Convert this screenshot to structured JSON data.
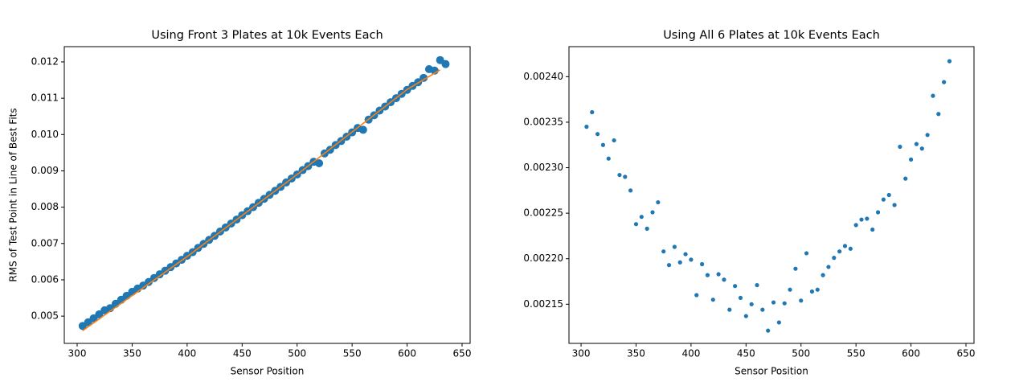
{
  "chart_data": [
    {
      "type": "scatter",
      "title": "Using Front 3 Plates at 10k Events Each",
      "xlabel": "Sensor Position",
      "ylabel": "RMS of Test Point in Line of Best Fits",
      "x": [
        305,
        310,
        315,
        320,
        325,
        330,
        335,
        340,
        345,
        350,
        355,
        360,
        365,
        370,
        375,
        380,
        385,
        390,
        395,
        400,
        405,
        410,
        415,
        420,
        425,
        430,
        435,
        440,
        445,
        450,
        455,
        460,
        465,
        470,
        475,
        480,
        485,
        490,
        495,
        500,
        505,
        510,
        515,
        520,
        525,
        530,
        535,
        540,
        545,
        550,
        555,
        560,
        565,
        570,
        575,
        580,
        585,
        590,
        595,
        600,
        605,
        610,
        615,
        620,
        625,
        630,
        635
      ],
      "series": [
        {
          "color": "#1f77b4",
          "values": [
            0.00473,
            0.00483,
            0.00494,
            0.00505,
            0.00516,
            0.00522,
            0.00534,
            0.00545,
            0.00556,
            0.00567,
            0.00576,
            0.00584,
            0.00594,
            0.00605,
            0.00615,
            0.00625,
            0.00635,
            0.00645,
            0.00655,
            0.00666,
            0.00676,
            0.00688,
            0.00699,
            0.0071,
            0.00721,
            0.00733,
            0.00744,
            0.00755,
            0.00766,
            0.00778,
            0.00789,
            0.008,
            0.00812,
            0.00823,
            0.00834,
            0.00845,
            0.00856,
            0.00868,
            0.00879,
            0.0089,
            0.00902,
            0.00913,
            0.00925,
            0.00921,
            0.00948,
            0.00958,
            0.00971,
            0.00982,
            0.00994,
            0.01006,
            0.01018,
            0.01013,
            0.01041,
            0.01053,
            0.01066,
            0.01077,
            0.01089,
            0.011,
            0.01112,
            0.01123,
            0.01134,
            0.01144,
            0.01156,
            0.0118,
            0.01176,
            0.01205,
            0.01194
          ]
        },
        {
          "type": "line",
          "color": "#ff7f0e",
          "x": [
            305,
            400,
            500,
            600,
            630
          ],
          "values": [
            0.0046,
            0.00664,
            0.0089,
            0.01124,
            0.01178
          ]
        }
      ],
      "xlim": [
        288.3,
        657.3
      ],
      "ylim": [
        0.00425,
        0.01242
      ],
      "xticks": [
        300,
        350,
        400,
        450,
        500,
        550,
        600,
        650
      ],
      "yticks": [
        0.005,
        0.006,
        0.007,
        0.008,
        0.009,
        {
          "value": 0.01,
          "label": "0.010"
        },
        0.011,
        0.012
      ]
    },
    {
      "type": "scatter",
      "title": "Using All 6 Plates at 10k Events Each",
      "xlabel": "Sensor Position",
      "x": [
        305,
        310,
        315,
        320,
        325,
        330,
        335,
        340,
        345,
        350,
        355,
        360,
        365,
        370,
        375,
        380,
        385,
        390,
        395,
        400,
        405,
        410,
        415,
        420,
        425,
        430,
        435,
        440,
        445,
        450,
        455,
        460,
        465,
        470,
        475,
        480,
        485,
        490,
        495,
        500,
        505,
        510,
        515,
        520,
        525,
        530,
        535,
        540,
        545,
        550,
        555,
        560,
        565,
        570,
        575,
        580,
        585,
        590,
        595,
        600,
        605,
        610,
        615,
        620,
        625,
        630,
        635
      ],
      "series": [
        {
          "color": "#1f77b4",
          "values": [
            0.002345,
            0.002361,
            0.002337,
            0.002325,
            0.00231,
            0.00233,
            0.002292,
            0.00229,
            0.002275,
            0.002238,
            0.002246,
            0.002233,
            0.002251,
            0.002262,
            0.002208,
            0.002193,
            0.002213,
            0.002196,
            0.002205,
            0.002199,
            0.00216,
            0.002194,
            0.002182,
            0.002155,
            0.002183,
            0.002177,
            0.002144,
            0.00217,
            0.002157,
            0.002137,
            0.00215,
            0.002171,
            0.002144,
            0.002121,
            0.002152,
            0.00213,
            0.002151,
            0.002166,
            0.002189,
            0.002154,
            0.002206,
            0.002164,
            0.002166,
            0.002182,
            0.002191,
            0.002201,
            0.002208,
            0.002214,
            0.002211,
            0.002237,
            0.002243,
            0.002244,
            0.002232,
            0.002251,
            0.002265,
            0.00227,
            0.002259,
            0.002323,
            0.002288,
            0.002309,
            0.002326,
            0.002321,
            0.002336,
            0.002379,
            0.002359,
            0.002394,
            0.002417
          ]
        }
      ],
      "xlim": [
        289,
        657.3
      ],
      "ylim": [
        0.002107,
        0.002433
      ],
      "xticks": [
        300,
        350,
        400,
        450,
        500,
        550,
        600,
        650
      ],
      "yticks": [
        0.00215,
        {
          "value": 0.0022,
          "label": "0.00220"
        },
        0.00225,
        {
          "value": 0.0023,
          "label": "0.00230"
        },
        0.00235,
        {
          "value": 0.0024,
          "label": "0.00240"
        }
      ]
    }
  ]
}
